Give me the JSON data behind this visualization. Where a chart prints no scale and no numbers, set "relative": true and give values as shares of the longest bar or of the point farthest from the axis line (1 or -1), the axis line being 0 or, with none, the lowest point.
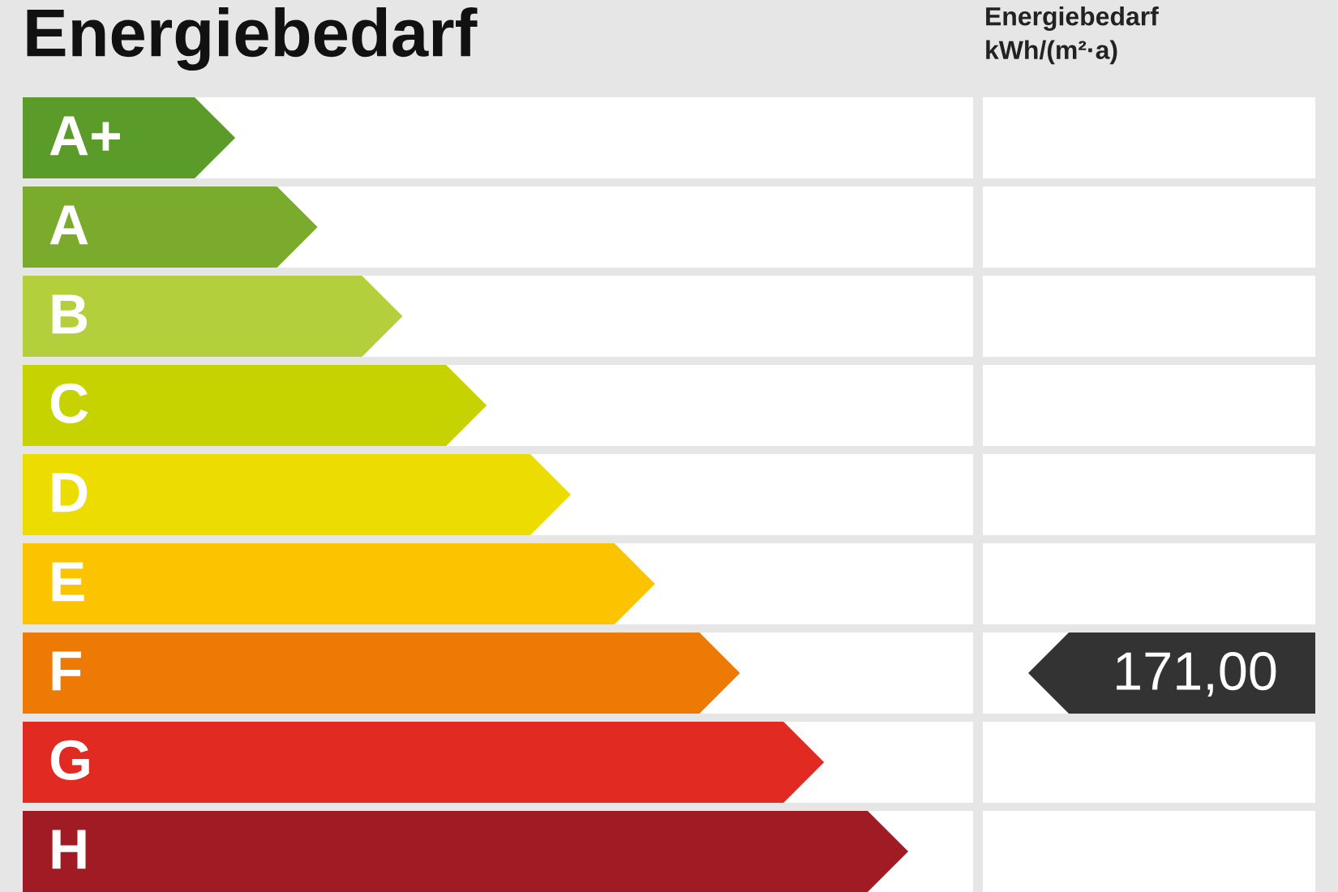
{
  "chart_data": {
    "type": "bar",
    "orientation": "horizontal",
    "relative": true,
    "title": "Energiebedarf",
    "categories": [
      "A+",
      "A",
      "B",
      "C",
      "D",
      "E",
      "F",
      "G",
      "H"
    ],
    "values": [
      0.24,
      0.333,
      0.429,
      0.524,
      0.619,
      0.714,
      0.81,
      0.905,
      1.0
    ],
    "colors": [
      "#5a9b2a",
      "#7bab2c",
      "#b4cf3c",
      "#c6d300",
      "#eddc00",
      "#fcc400",
      "#ec7a04",
      "#e12a22",
      "#a11b24"
    ],
    "annotations": [
      "Energiebedarf\nkWh/(m²·a)",
      "171,00"
    ]
  }
}
